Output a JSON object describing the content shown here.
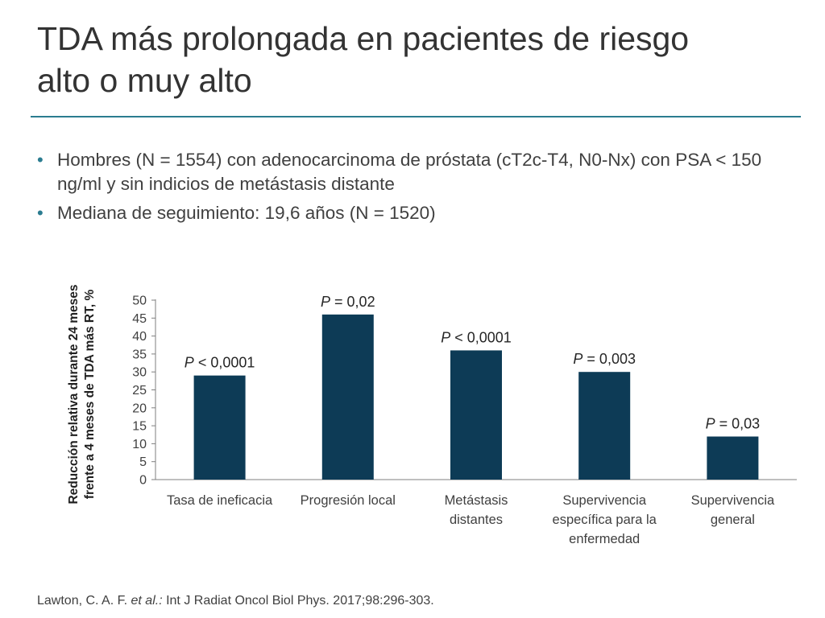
{
  "slide": {
    "title_line1": "TDA más prolongada en pacientes de riesgo",
    "title_line2": "alto o muy alto",
    "bullets": [
      "Hombres (N = 1554) con adenocarcinoma de próstata (cT2c-T4, N0-Nx) con PSA < 150 ng/ml y sin indicios de metástasis distante",
      "Mediana de seguimiento: 19,6 años (N = 1520)"
    ],
    "citation_authors": "Lawton, C. A. F. ",
    "citation_etal": "et al.:",
    "citation_rest": " Int J Radiat Oncol Biol Phys. 2017;98:296-303."
  },
  "colors": {
    "bar": "#0d3b56",
    "accent": "#2b7c90",
    "text": "#404040",
    "axis": "#7f7f7f"
  },
  "chart_data": {
    "type": "bar",
    "title": "",
    "xlabel": "",
    "ylabel_lines": [
      "Reducción relativa durante 24 meses",
      "frente a 4 meses de TDA más RT, %"
    ],
    "ylim": [
      0,
      50
    ],
    "yticks": [
      0,
      5,
      10,
      15,
      20,
      25,
      30,
      35,
      40,
      45,
      50
    ],
    "grid": false,
    "categories": [
      [
        "Tasa de ineficacia"
      ],
      [
        "Progresión local"
      ],
      [
        "Metástasis",
        "distantes"
      ],
      [
        "Supervivencia",
        "específica para la",
        "enfermedad"
      ],
      [
        "Supervivencia",
        "general"
      ]
    ],
    "values": [
      29,
      46,
      36,
      30,
      12
    ],
    "p_labels": [
      {
        "p": "P",
        "rest": " < 0,0001"
      },
      {
        "p": "P",
        "rest": " = 0,02"
      },
      {
        "p": "P",
        "rest": " < 0,0001"
      },
      {
        "p": "P",
        "rest": " = 0,003"
      },
      {
        "p": "P",
        "rest": " = 0,03"
      }
    ]
  }
}
